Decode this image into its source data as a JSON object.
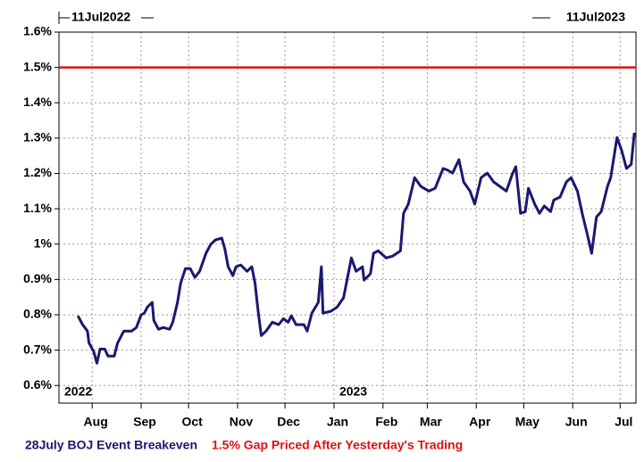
{
  "chart_data": {
    "type": "line",
    "start_label": "11Jul2022",
    "end_label": "11Jul2023",
    "year_labels": [
      {
        "value": 0,
        "label": "2022"
      },
      {
        "value": 174,
        "label": "2023"
      }
    ],
    "xlim": [
      0,
      365
    ],
    "xticks": [
      {
        "value": 21,
        "label": "Aug"
      },
      {
        "value": 52,
        "label": "Sep"
      },
      {
        "value": 82,
        "label": "Oct"
      },
      {
        "value": 113,
        "label": "Nov"
      },
      {
        "value": 143,
        "label": "Dec"
      },
      {
        "value": 174,
        "label": "Jan"
      },
      {
        "value": 205,
        "label": "Feb"
      },
      {
        "value": 233,
        "label": "Mar"
      },
      {
        "value": 264,
        "label": "Apr"
      },
      {
        "value": 294,
        "label": "May"
      },
      {
        "value": 325,
        "label": "Jun"
      },
      {
        "value": 355,
        "label": "Jul"
      }
    ],
    "ylim": [
      0.55,
      1.6
    ],
    "yticks": [
      {
        "value": 0.6,
        "label": "0.6%"
      },
      {
        "value": 0.7,
        "label": "0.7%"
      },
      {
        "value": 0.8,
        "label": "0.8%"
      },
      {
        "value": 0.9,
        "label": "0.9%"
      },
      {
        "value": 1.0,
        "label": "1%"
      },
      {
        "value": 1.1,
        "label": "1.1%"
      },
      {
        "value": 1.2,
        "label": "1.2%"
      },
      {
        "value": 1.3,
        "label": "1.3%"
      },
      {
        "value": 1.4,
        "label": "1.4%"
      },
      {
        "value": 1.5,
        "label": "1.5%"
      },
      {
        "value": 1.6,
        "label": "1.6%"
      }
    ],
    "grid": true,
    "series": [
      {
        "name": "28July BOJ Event Breakeven",
        "color": "#191970",
        "x": [
          12,
          15,
          18,
          19,
          22,
          24,
          26,
          29,
          31,
          35,
          37,
          41,
          44,
          46,
          49,
          52,
          54,
          56,
          59,
          60,
          63,
          66,
          70,
          72,
          75,
          77,
          80,
          83,
          86,
          89,
          93,
          96,
          99,
          103,
          105,
          107,
          110,
          112,
          115,
          119,
          122,
          124,
          126,
          128,
          131,
          135,
          139,
          142,
          145,
          147,
          150,
          155,
          157,
          160,
          164,
          166,
          167,
          172,
          176,
          180,
          185,
          188,
          192,
          193,
          197,
          199,
          202,
          207,
          211,
          216,
          218,
          221,
          225,
          229,
          234,
          238,
          243,
          246,
          249,
          253,
          256,
          260,
          263,
          267,
          271,
          275,
          279,
          283,
          287,
          289,
          292,
          295,
          297,
          301,
          304,
          307,
          311,
          313,
          317,
          321,
          324,
          328,
          331,
          334,
          337,
          340,
          343,
          347,
          349,
          353,
          356,
          359,
          362,
          364
        ],
        "values": [
          0.797,
          0.772,
          0.754,
          0.721,
          0.696,
          0.663,
          0.703,
          0.703,
          0.683,
          0.683,
          0.719,
          0.754,
          0.754,
          0.754,
          0.764,
          0.8,
          0.805,
          0.822,
          0.835,
          0.784,
          0.759,
          0.764,
          0.759,
          0.779,
          0.835,
          0.89,
          0.931,
          0.931,
          0.906,
          0.923,
          0.974,
          0.999,
          1.012,
          1.017,
          0.986,
          0.936,
          0.911,
          0.936,
          0.941,
          0.923,
          0.936,
          0.89,
          0.81,
          0.741,
          0.754,
          0.779,
          0.772,
          0.789,
          0.779,
          0.797,
          0.772,
          0.772,
          0.754,
          0.805,
          0.835,
          0.936,
          0.805,
          0.81,
          0.822,
          0.848,
          0.961,
          0.923,
          0.936,
          0.898,
          0.916,
          0.974,
          0.981,
          0.961,
          0.966,
          0.981,
          1.087,
          1.113,
          1.188,
          1.163,
          1.15,
          1.158,
          1.214,
          1.209,
          1.201,
          1.239,
          1.176,
          1.15,
          1.113,
          1.188,
          1.201,
          1.176,
          1.163,
          1.15,
          1.201,
          1.219,
          1.087,
          1.092,
          1.158,
          1.113,
          1.087,
          1.108,
          1.092,
          1.125,
          1.133,
          1.176,
          1.188,
          1.15,
          1.087,
          1.032,
          0.974,
          1.077,
          1.092,
          1.163,
          1.188,
          1.302,
          1.264,
          1.214,
          1.226,
          1.315
        ]
      },
      {
        "name": "1.5% Gap Priced After Yesterday's Trading",
        "color": "#e01010",
        "x": [
          0,
          365
        ],
        "values": [
          1.5,
          1.5
        ]
      }
    ]
  }
}
